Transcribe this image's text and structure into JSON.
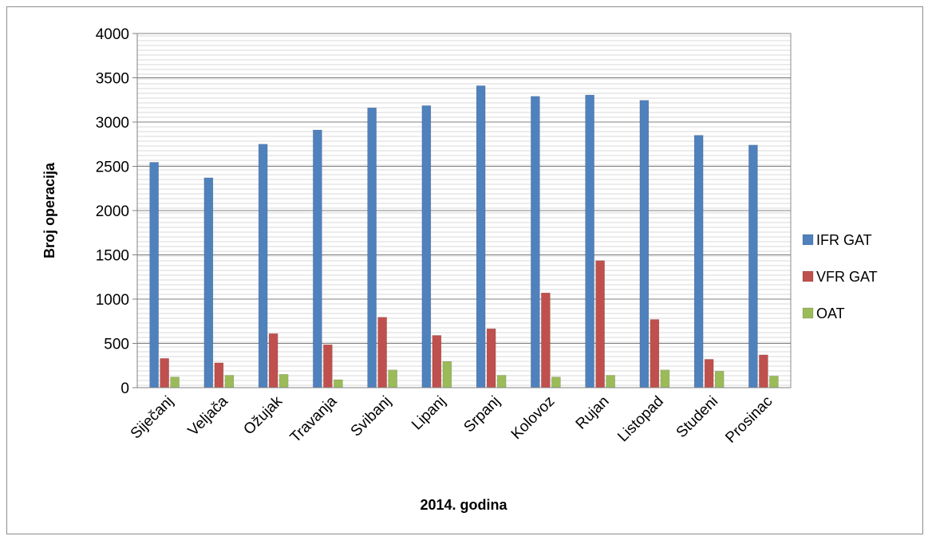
{
  "chart_data": {
    "type": "bar",
    "title": "",
    "xlabel": "2014. godina",
    "ylabel": "Broj operacija",
    "ylim": [
      0,
      4000
    ],
    "yticks": [
      0,
      500,
      1000,
      1500,
      2000,
      2500,
      3000,
      3500,
      4000
    ],
    "grid": true,
    "legend_position": "right",
    "categories": [
      "Siječanj",
      "Veljača",
      "Ožujak",
      "Travanja",
      "Svibanj",
      "Lipanj",
      "Srpanj",
      "Kolovoz",
      "Rujan",
      "Listopad",
      "Studeni",
      "Prosinac"
    ],
    "series": [
      {
        "name": "IFR GAT",
        "color": "#4f81bd",
        "values": [
          2545,
          2370,
          2750,
          2910,
          3160,
          3185,
          3410,
          3290,
          3305,
          3245,
          2850,
          2740
        ]
      },
      {
        "name": "VFR GAT",
        "color": "#c0504d",
        "values": [
          330,
          280,
          610,
          485,
          795,
          590,
          665,
          1070,
          1435,
          770,
          320,
          370
        ]
      },
      {
        "name": "OAT",
        "color": "#9bbb59",
        "values": [
          120,
          140,
          150,
          90,
          200,
          295,
          140,
          120,
          140,
          200,
          185,
          130
        ]
      }
    ]
  }
}
